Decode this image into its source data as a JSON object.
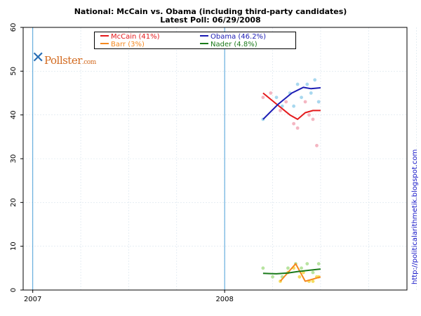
{
  "chart_data": {
    "type": "line",
    "title": "National: McCain vs. Obama (including third-party candidates)",
    "subtitle": "Latest Poll: 06/29/2008",
    "xlabel": "",
    "ylabel": "",
    "ylim": [
      0,
      60
    ],
    "yticks": [
      0,
      10,
      20,
      30,
      40,
      50,
      60
    ],
    "xlim": [
      2006.95,
      2008.95
    ],
    "xticks": [
      {
        "value": 2007.0,
        "label": "2007"
      },
      {
        "value": 2008.0,
        "label": "2008"
      }
    ],
    "vlines": [
      2007.0,
      2008.0
    ],
    "grid": true,
    "legend_position": "top-left",
    "series": [
      {
        "name": "McCain (41%)",
        "color": "#e41a1c",
        "point_color": "#f4b6c2",
        "trend": [
          [
            2008.2,
            45
          ],
          [
            2008.27,
            42.5
          ],
          [
            2008.34,
            40
          ],
          [
            2008.38,
            39
          ],
          [
            2008.42,
            40.5
          ],
          [
            2008.46,
            41
          ],
          [
            2008.5,
            41
          ]
        ],
        "points": [
          [
            2008.2,
            44
          ],
          [
            2008.24,
            45
          ],
          [
            2008.29,
            41
          ],
          [
            2008.32,
            43
          ],
          [
            2008.36,
            38
          ],
          [
            2008.38,
            37
          ],
          [
            2008.42,
            43
          ],
          [
            2008.44,
            40
          ],
          [
            2008.46,
            39
          ],
          [
            2008.48,
            33
          ],
          [
            2008.49,
            43
          ]
        ]
      },
      {
        "name": "Obama (46.2%)",
        "color": "#1c1cb4",
        "point_color": "#a8d8ef",
        "trend": [
          [
            2008.2,
            39
          ],
          [
            2008.28,
            42.5
          ],
          [
            2008.35,
            45
          ],
          [
            2008.41,
            46.3
          ],
          [
            2008.45,
            46
          ],
          [
            2008.5,
            46.2
          ]
        ],
        "points": [
          [
            2008.2,
            39
          ],
          [
            2008.27,
            44
          ],
          [
            2008.3,
            42
          ],
          [
            2008.34,
            45
          ],
          [
            2008.36,
            42
          ],
          [
            2008.38,
            47
          ],
          [
            2008.4,
            44
          ],
          [
            2008.43,
            47
          ],
          [
            2008.45,
            45
          ],
          [
            2008.47,
            48
          ],
          [
            2008.49,
            43
          ]
        ]
      },
      {
        "name": "Barr (3%)",
        "color": "#f5891f",
        "point_color": "#f5dd61",
        "trend": [
          [
            2008.29,
            2
          ],
          [
            2008.33,
            4
          ],
          [
            2008.37,
            6
          ],
          [
            2008.42,
            2
          ],
          [
            2008.46,
            2.5
          ],
          [
            2008.5,
            3
          ]
        ],
        "points": [
          [
            2008.29,
            2
          ],
          [
            2008.33,
            4
          ],
          [
            2008.36,
            5
          ],
          [
            2008.39,
            3
          ],
          [
            2008.41,
            4
          ],
          [
            2008.44,
            2
          ],
          [
            2008.46,
            2
          ],
          [
            2008.48,
            3
          ],
          [
            2008.49,
            3
          ]
        ]
      },
      {
        "name": "Nader (4.8%)",
        "color": "#1a7a1a",
        "point_color": "#b8e4a0",
        "trend": [
          [
            2008.2,
            3.8
          ],
          [
            2008.27,
            3.7
          ],
          [
            2008.33,
            3.9
          ],
          [
            2008.38,
            4.2
          ],
          [
            2008.44,
            4.5
          ],
          [
            2008.5,
            4.8
          ]
        ],
        "points": [
          [
            2008.2,
            5
          ],
          [
            2008.25,
            3
          ],
          [
            2008.3,
            3
          ],
          [
            2008.33,
            5
          ],
          [
            2008.37,
            6
          ],
          [
            2008.4,
            5
          ],
          [
            2008.43,
            6
          ],
          [
            2008.46,
            4
          ],
          [
            2008.49,
            6
          ]
        ]
      }
    ]
  },
  "legend_order": [
    0,
    2,
    1,
    3
  ],
  "logo": {
    "text": "Pollster",
    "suffix": ".com"
  },
  "watermark": "http://politicalarithmetik.blogspot.com"
}
